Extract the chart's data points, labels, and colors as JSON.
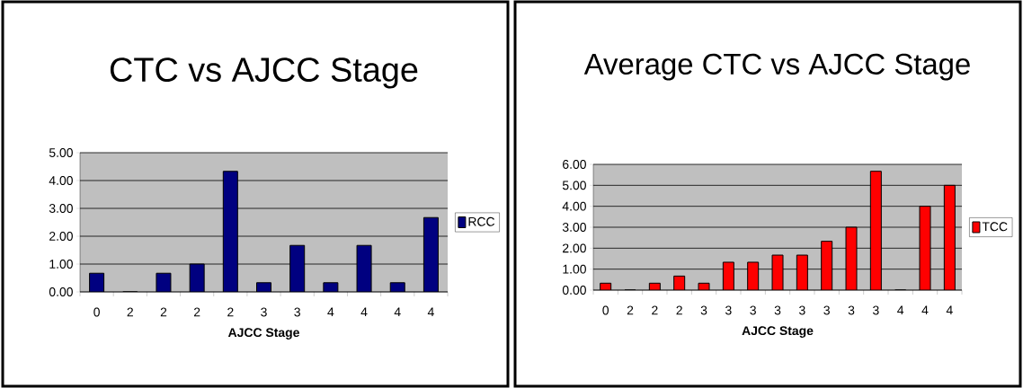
{
  "chart_data": [
    {
      "type": "bar",
      "title": "CTC vs AJCC Stage",
      "xlabel": "AJCC Stage",
      "categories": [
        "0",
        "2",
        "2",
        "2",
        "2",
        "3",
        "3",
        "4",
        "4",
        "4",
        "4"
      ],
      "series": [
        {
          "name": "RCC",
          "color": "#000080",
          "values": [
            0.67,
            0,
            0.67,
            1.0,
            4.33,
            0.33,
            1.67,
            0.33,
            1.67,
            0.33,
            2.67
          ]
        }
      ],
      "ylim": [
        0,
        5
      ],
      "yticks": [
        {
          "value": 0,
          "label": "0.00"
        },
        {
          "value": 1,
          "label": "1.00"
        },
        {
          "value": 2,
          "label": "2.00"
        },
        {
          "value": 3,
          "label": "3.00"
        },
        {
          "value": 4,
          "label": "4.00"
        },
        {
          "value": 5,
          "label": "5.00"
        }
      ],
      "grid": "y",
      "legend": "right"
    },
    {
      "type": "bar",
      "title": "Average CTC vs AJCC Stage",
      "xlabel": "AJCC Stage",
      "categories": [
        "0",
        "2",
        "2",
        "2",
        "3",
        "3",
        "3",
        "3",
        "3",
        "3",
        "3",
        "3",
        "4",
        "4",
        "4"
      ],
      "series": [
        {
          "name": "TCC",
          "color": "#ff0000",
          "values": [
            0.33,
            0,
            0.33,
            0.67,
            0.33,
            1.33,
            1.33,
            1.67,
            1.67,
            2.33,
            3.0,
            5.67,
            0,
            4.0,
            5.0
          ]
        }
      ],
      "ylim": [
        0,
        6
      ],
      "yticks": [
        {
          "value": 0,
          "label": "0.00"
        },
        {
          "value": 1,
          "label": "1.00"
        },
        {
          "value": 2,
          "label": "2.00"
        },
        {
          "value": 3,
          "label": "3.00"
        },
        {
          "value": 4,
          "label": "4.00"
        },
        {
          "value": 5,
          "label": "5.00"
        },
        {
          "value": 6,
          "label": "6.00"
        }
      ],
      "grid": "y",
      "legend": "right"
    }
  ]
}
